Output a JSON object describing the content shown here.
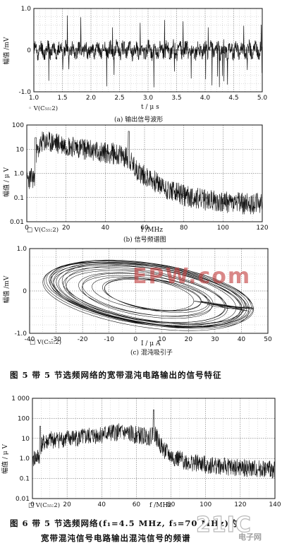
{
  "figure5": {
    "caption": "图 5    带 5 节选频网络的宽带混沌电路输出的信号特征"
  },
  "figure6": {
    "caption_line1": "图 6    带 5 节选频网络(f₁=4.5 MHz, f₅=70 MHz)的",
    "caption_line2": "宽带混沌信号电路输出混沌信号的频谱"
  },
  "watermark": {
    "top_text": "EPW.com",
    "bottom_text": "21IC",
    "bottom_subtext": "电子网"
  },
  "chart_data": [
    {
      "id": "a",
      "type": "line",
      "title": "(a) 输出信号波形",
      "xlabel": "t / μ s",
      "ylabel": "幅值 /mV",
      "legend": "V(C₅₅:2)",
      "legend_placement": "bottom-left",
      "xlim": [
        1.0,
        5.0
      ],
      "ylim": [
        -1.0,
        1.0
      ],
      "xticks": [
        "1.0",
        "1.5",
        "2.0",
        "2.5",
        "3.0",
        "3.5",
        "4.0",
        "4.5",
        "5.0"
      ],
      "yticks": [
        "1.0",
        "0",
        "-1.0"
      ],
      "grid": true,
      "description_values": {
        "baseline_mV": 0,
        "typical_amplitude_mV": 0.3,
        "max_spike_mV": 0.9,
        "min_spike_mV": -0.95,
        "seed": 11
      }
    },
    {
      "id": "b",
      "type": "line",
      "title": "(b) 信号频谱图",
      "xlabel": "f /MHz",
      "ylabel": "幅值 / μ V",
      "legend": "V(C₅₅:2)",
      "legend_placement": "bottom-left",
      "yscale": "log",
      "xlim": [
        0,
        120
      ],
      "ylim": [
        0.01,
        100
      ],
      "xticks": [
        "0",
        "20",
        "40",
        "60",
        "80",
        "100",
        "120"
      ],
      "yticks": [
        "100",
        "10",
        "1.0",
        "0.1",
        "0.01"
      ],
      "grid": true,
      "envelope": {
        "x": [
          0,
          4,
          5,
          8,
          15,
          25,
          35,
          45,
          50,
          52,
          55,
          60,
          65,
          70,
          80,
          90,
          100,
          110,
          118
        ],
        "y": [
          0.7,
          0.8,
          8,
          25,
          22,
          15,
          10,
          8,
          6,
          5,
          2,
          1.0,
          0.6,
          0.3,
          0.15,
          0.1,
          0.08,
          0.07,
          0.07
        ]
      },
      "peaks": [
        {
          "x": 4.5,
          "y": 30
        },
        {
          "x": 52,
          "y": 55
        }
      ],
      "seed": 23
    },
    {
      "id": "c",
      "type": "line",
      "title": "(c) 混沌吸引子",
      "xlabel": "I / μ A",
      "ylabel": "幅值 /mV",
      "legend": "V(C₅₅:2)",
      "legend_placement": "bottom-left",
      "xlim": [
        -40,
        50
      ],
      "ylim": [
        -1.0,
        1.0
      ],
      "xticks": [
        "-40",
        "-30",
        "-20",
        "-10",
        "0",
        "10",
        "20",
        "30",
        "40",
        "50"
      ],
      "yticks": [
        "1.0",
        "0",
        "-1.0"
      ],
      "grid": true,
      "attractor": {
        "center_x": 5,
        "center_y": -0.1,
        "max_half_width": 40,
        "max_half_height": 0.75,
        "tilt": -0.35,
        "loops": 22,
        "seed": 5
      }
    },
    {
      "id": "d",
      "type": "line",
      "title": "",
      "xlabel": "f /MHz",
      "ylabel": "幅值 / μ V",
      "legend": "V(C₅₅:2)",
      "legend_placement": "bottom-left",
      "yscale": "log",
      "xlim": [
        0,
        140
      ],
      "ylim": [
        0.01,
        1000
      ],
      "xticks": [
        "0",
        "20",
        "40",
        "60",
        "80",
        "100",
        "120",
        "140"
      ],
      "yticks": [
        "1 000",
        "100",
        "10",
        "1.0",
        "0.1",
        "0.01"
      ],
      "grid": true,
      "envelope": {
        "x": [
          0,
          4,
          5,
          10,
          20,
          30,
          40,
          50,
          60,
          68,
          70,
          72,
          75,
          80,
          90,
          100,
          120,
          140
        ],
        "y": [
          1.2,
          1.5,
          6,
          10,
          12,
          14,
          20,
          25,
          18,
          15,
          30,
          12,
          4,
          1.5,
          0.8,
          0.6,
          0.4,
          0.35
        ]
      },
      "peaks": [
        {
          "x": 4.5,
          "y": 40
        },
        {
          "x": 70,
          "y": 260
        }
      ],
      "seed": 41
    }
  ]
}
